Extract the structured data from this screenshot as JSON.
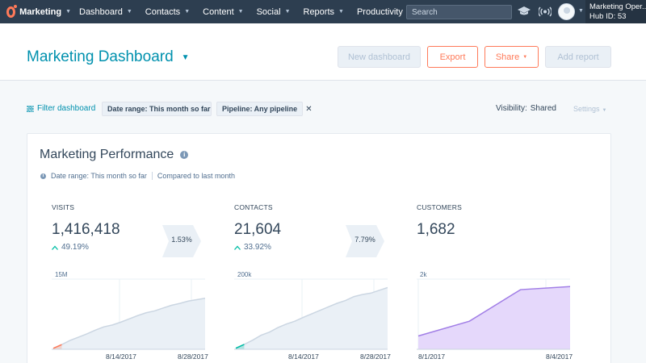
{
  "topnav": {
    "brand": "Marketing",
    "items": [
      {
        "label": "Dashboard"
      },
      {
        "label": "Contacts"
      },
      {
        "label": "Content"
      },
      {
        "label": "Social"
      },
      {
        "label": "Reports"
      },
      {
        "label": "Productivity"
      }
    ],
    "search_placeholder": "Search",
    "account_name": "Marketing Oper...",
    "hub_id": "Hub ID: 53",
    "icons": [
      "hubspot-sprocket-icon",
      "academy-icon",
      "notifications-icon",
      "avatar"
    ]
  },
  "header": {
    "title": "Marketing Dashboard",
    "buttons": {
      "new_dashboard": "New dashboard",
      "export": "Export",
      "share": "Share",
      "add_report": "Add report"
    }
  },
  "filters": {
    "filter_link": "Filter dashboard",
    "chips": [
      "Date range: This month so far",
      "Pipeline: Any pipeline"
    ],
    "visibility_label": "Visibility:",
    "visibility_value": "Shared",
    "settings": "Settings"
  },
  "card": {
    "title": "Marketing Performance",
    "date_range": "Date range: This month so far",
    "compare": "Compared to last month",
    "metrics": [
      {
        "label": "Visits",
        "value": "1,416,418",
        "change": "49.19%"
      },
      {
        "label": "Contacts",
        "value": "21,604",
        "change": "33.92%"
      },
      {
        "label": "Customers",
        "value": "1,682",
        "change": ""
      }
    ],
    "conversions": [
      "1.53%",
      "7.79%"
    ]
  },
  "chart_data": [
    {
      "type": "area",
      "title": "",
      "ylim": [
        0,
        15000000
      ],
      "y_tick_labels": [
        "15M"
      ],
      "x_tick_labels": [
        "8/14/2017",
        "8/28/2017"
      ],
      "series": [
        {
          "values": [
            0.2,
            1.0,
            1.9,
            2.6,
            3.3,
            4.1,
            4.8,
            5.2,
            5.8,
            6.5,
            7.2,
            7.8,
            8.2,
            8.8,
            9.4,
            9.8,
            10.3,
            10.6,
            10.9
          ]
        }
      ],
      "colors": {
        "area": "#eaf0f6",
        "line": "#cbd6e2",
        "highlight": "#ff7a59"
      }
    },
    {
      "type": "area",
      "title": "",
      "ylim": [
        0,
        200000
      ],
      "y_tick_labels": [
        "200k"
      ],
      "x_tick_labels": [
        "8/14/2017",
        "8/28/2017"
      ],
      "series": [
        {
          "values": [
            3000,
            14000,
            26000,
            40000,
            49000,
            62000,
            72000,
            80000,
            91000,
            101000,
            111000,
            121000,
            131000,
            139000,
            150000,
            156000,
            160000,
            168000,
            176000
          ]
        }
      ],
      "colors": {
        "area": "#eaf0f6",
        "line": "#cbd6e2",
        "highlight": "#00bda5"
      }
    },
    {
      "type": "area",
      "title": "",
      "ylim": [
        0,
        2000
      ],
      "y_tick_labels": [
        "2k"
      ],
      "x_tick_labels": [
        "8/1/2017",
        "8/4/2017"
      ],
      "series": [
        {
          "values": [
            380,
            800,
            1700,
            1790
          ]
        }
      ],
      "colors": {
        "area": "#e5d8fb",
        "line": "#a17ee6"
      }
    }
  ]
}
